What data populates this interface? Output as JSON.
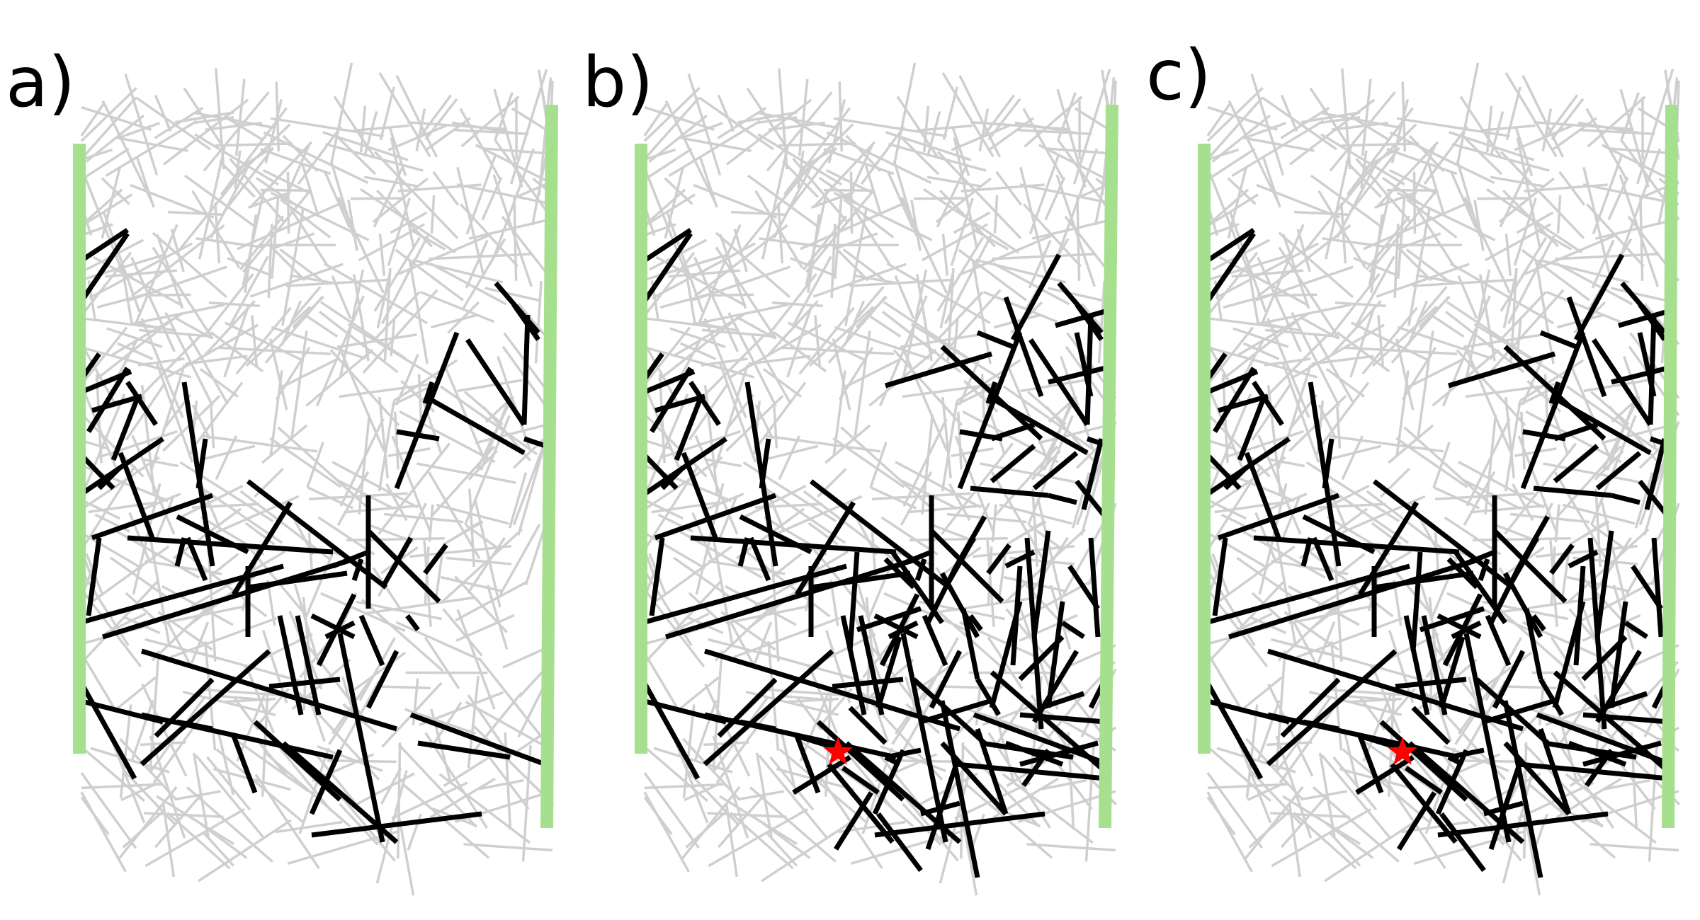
{
  "colors": {
    "background_stick": "#cfcfcf",
    "connected_stick": "#000000",
    "electrode": "#a6df8e",
    "marker": "#ff0000"
  },
  "panels": [
    {
      "id": "a",
      "label": "a)",
      "has_marker": false,
      "extra_clusters": false
    },
    {
      "id": "b",
      "label": "b)",
      "has_marker": true,
      "extra_clusters": true
    },
    {
      "id": "c",
      "label": "c)",
      "has_marker": true,
      "extra_clusters": true
    }
  ],
  "marker_icon": "star-icon"
}
